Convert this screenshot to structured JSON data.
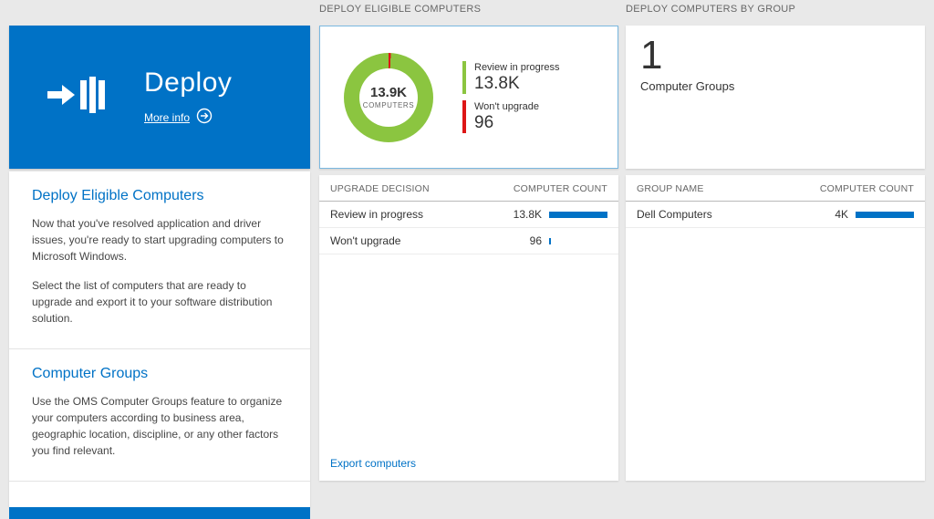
{
  "colors": {
    "accent_blue": "#0072c6",
    "donut_green": "#8bc540",
    "warn_red": "#dd1616",
    "bar_blue": "#0072c6",
    "background": "#e9e9e9"
  },
  "left": {
    "tile": {
      "title": "Deploy",
      "more_info_label": "More info"
    },
    "sections": [
      {
        "heading": "Deploy Eligible Computers",
        "paragraphs": [
          "Now that you've resolved application and driver issues, you're ready to start upgrading computers to Microsoft Windows.",
          "Select the list of computers that are ready to upgrade and export it to your software distribution solution."
        ]
      },
      {
        "heading": "Computer Groups",
        "paragraphs": [
          "Use the OMS Computer Groups feature to organize your computers according to business area, geographic location, discipline, or any other factors you find relevant."
        ]
      }
    ]
  },
  "middle": {
    "header": "DEPLOY ELIGIBLE COMPUTERS",
    "chart_data": {
      "type": "pie",
      "title": "Deploy Eligible Computers donut",
      "center_value": "13.9K",
      "center_label": "COMPUTERS",
      "slices": [
        {
          "label": "Review in progress",
          "value": 13800,
          "display": "13.8K",
          "color": "#8bc540"
        },
        {
          "label": "Won't upgrade",
          "value": 96,
          "display": "96",
          "color": "#dd1616"
        }
      ]
    },
    "legend": [
      {
        "label": "Review in progress",
        "value": "13.8K",
        "color": "#8bc540"
      },
      {
        "label": "Won't upgrade",
        "value": "96",
        "color": "#dd1616"
      }
    ],
    "table": {
      "columns": [
        "UPGRADE DECISION",
        "COMPUTER COUNT"
      ],
      "rows": [
        {
          "label": "Review in progress",
          "value": "13.8K",
          "bar_pct": 100
        },
        {
          "label": "Won't upgrade",
          "value": "96",
          "bar_pct": 3
        }
      ]
    },
    "footer_link": "Export computers"
  },
  "right": {
    "header": "DEPLOY COMPUTERS BY GROUP",
    "tile": {
      "count": "1",
      "label": "Computer Groups"
    },
    "table": {
      "columns": [
        "GROUP NAME",
        "COMPUTER COUNT"
      ],
      "rows": [
        {
          "label": "Dell Computers",
          "value": "4K",
          "bar_pct": 100
        }
      ]
    }
  }
}
